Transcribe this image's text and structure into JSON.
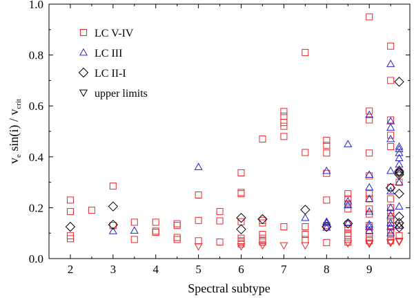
{
  "chart_data": {
    "type": "scatter",
    "title": "",
    "xlabel": "Spectral subtype",
    "ylabel_parts": [
      "v",
      "e",
      " sin(i) / v",
      "crit"
    ],
    "xlim": [
      1.5,
      9.95
    ],
    "ylim": [
      0.0,
      1.0
    ],
    "xticks": [
      2,
      3,
      4,
      5,
      6,
      7,
      8,
      9
    ],
    "yticks": [
      0.0,
      0.2,
      0.4,
      0.6,
      0.8,
      1.0
    ],
    "ytick_labels": [
      "0.0",
      "0.2",
      "0.4",
      "0.6",
      "0.8",
      "1.0"
    ],
    "grid": false,
    "legend_position": "top-left",
    "series": [
      {
        "name": "LC V-IV",
        "marker": "square",
        "color": "#e8262a",
        "points": [
          [
            2.0,
            0.23
          ],
          [
            2.0,
            0.185
          ],
          [
            2.0,
            0.09
          ],
          [
            2.0,
            0.078
          ],
          [
            2.5,
            0.19
          ],
          [
            3.0,
            0.285
          ],
          [
            3.0,
            0.13
          ],
          [
            3.5,
            0.143
          ],
          [
            3.5,
            0.075
          ],
          [
            4.0,
            0.143
          ],
          [
            4.0,
            0.108
          ],
          [
            4.0,
            0.103
          ],
          [
            4.5,
            0.137
          ],
          [
            4.5,
            0.13
          ],
          [
            4.5,
            0.083
          ],
          [
            4.5,
            0.075
          ],
          [
            5.0,
            0.25
          ],
          [
            5.0,
            0.15
          ],
          [
            5.0,
            0.07
          ],
          [
            5.5,
            0.185
          ],
          [
            5.5,
            0.148
          ],
          [
            5.5,
            0.065
          ],
          [
            6.0,
            0.337
          ],
          [
            6.0,
            0.26
          ],
          [
            6.0,
            0.255
          ],
          [
            6.0,
            0.145
          ],
          [
            6.0,
            0.08
          ],
          [
            6.0,
            0.07
          ],
          [
            6.0,
            0.065
          ],
          [
            6.0,
            0.058
          ],
          [
            6.5,
            0.47
          ],
          [
            6.5,
            0.15
          ],
          [
            6.5,
            0.14
          ],
          [
            6.5,
            0.095
          ],
          [
            6.5,
            0.08
          ],
          [
            6.5,
            0.072
          ],
          [
            6.5,
            0.065
          ],
          [
            7.0,
            0.578
          ],
          [
            7.0,
            0.56
          ],
          [
            7.0,
            0.535
          ],
          [
            7.0,
            0.52
          ],
          [
            7.0,
            0.48
          ],
          [
            7.0,
            0.125
          ],
          [
            7.5,
            0.81
          ],
          [
            7.5,
            0.417
          ],
          [
            7.5,
            0.125
          ],
          [
            7.5,
            0.095
          ],
          [
            7.5,
            0.075
          ],
          [
            8.0,
            0.465
          ],
          [
            8.0,
            0.445
          ],
          [
            8.0,
            0.415
          ],
          [
            8.0,
            0.335
          ],
          [
            8.0,
            0.23
          ],
          [
            8.0,
            0.13
          ],
          [
            8.0,
            0.063
          ],
          [
            8.5,
            0.255
          ],
          [
            8.5,
            0.235
          ],
          [
            8.5,
            0.215
          ],
          [
            8.5,
            0.195
          ],
          [
            8.5,
            0.135
          ],
          [
            8.5,
            0.12
          ],
          [
            8.5,
            0.1
          ],
          [
            8.5,
            0.09
          ],
          [
            8.5,
            0.075
          ],
          [
            8.5,
            0.065
          ],
          [
            9.0,
            0.95
          ],
          [
            9.0,
            0.58
          ],
          [
            9.0,
            0.545
          ],
          [
            9.0,
            0.415
          ],
          [
            9.0,
            0.325
          ],
          [
            9.0,
            0.255
          ],
          [
            9.0,
            0.235
          ],
          [
            9.0,
            0.195
          ],
          [
            9.0,
            0.175
          ],
          [
            9.0,
            0.13
          ],
          [
            9.0,
            0.1
          ],
          [
            9.0,
            0.085
          ],
          [
            9.0,
            0.07
          ],
          [
            9.5,
            0.835
          ],
          [
            9.5,
            0.7
          ],
          [
            9.5,
            0.545
          ],
          [
            9.5,
            0.485
          ],
          [
            9.5,
            0.44
          ],
          [
            9.5,
            0.28
          ],
          [
            9.5,
            0.235
          ],
          [
            9.5,
            0.2
          ],
          [
            9.5,
            0.18
          ],
          [
            9.5,
            0.165
          ],
          [
            9.5,
            0.155
          ],
          [
            9.5,
            0.13
          ],
          [
            9.5,
            0.115
          ],
          [
            9.5,
            0.1
          ],
          [
            9.5,
            0.085
          ],
          [
            9.5,
            0.07
          ],
          [
            9.7,
            0.34
          ],
          [
            9.7,
            0.3
          ],
          [
            9.7,
            0.13
          ],
          [
            9.7,
            0.09
          ]
        ]
      },
      {
        "name": "LC III",
        "marker": "triangle-up",
        "color": "#2323c8",
        "points": [
          [
            3.0,
            0.108
          ],
          [
            3.5,
            0.11
          ],
          [
            5.0,
            0.36
          ],
          [
            7.5,
            0.16
          ],
          [
            8.0,
            0.345
          ],
          [
            8.0,
            0.145
          ],
          [
            8.0,
            0.14
          ],
          [
            8.0,
            0.122
          ],
          [
            8.5,
            0.45
          ],
          [
            8.5,
            0.225
          ],
          [
            8.5,
            0.21
          ],
          [
            8.5,
            0.14
          ],
          [
            9.0,
            0.565
          ],
          [
            9.0,
            0.33
          ],
          [
            9.0,
            0.28
          ],
          [
            9.0,
            0.235
          ],
          [
            9.0,
            0.185
          ],
          [
            9.0,
            0.135
          ],
          [
            9.0,
            0.125
          ],
          [
            9.0,
            0.11
          ],
          [
            9.5,
            0.765
          ],
          [
            9.5,
            0.54
          ],
          [
            9.5,
            0.515
          ],
          [
            9.5,
            0.47
          ],
          [
            9.5,
            0.345
          ],
          [
            9.5,
            0.265
          ],
          [
            9.5,
            0.2
          ],
          [
            9.5,
            0.17
          ],
          [
            9.5,
            0.14
          ],
          [
            9.5,
            0.125
          ],
          [
            9.5,
            0.1
          ],
          [
            9.7,
            0.44
          ],
          [
            9.7,
            0.43
          ],
          [
            9.7,
            0.415
          ],
          [
            9.7,
            0.395
          ],
          [
            9.7,
            0.37
          ],
          [
            9.7,
            0.35
          ],
          [
            9.7,
            0.3
          ],
          [
            9.7,
            0.205
          ],
          [
            9.7,
            0.13
          ]
        ]
      },
      {
        "name": "LC II-I",
        "marker": "diamond",
        "color": "#000000",
        "points": [
          [
            2.0,
            0.125
          ],
          [
            3.0,
            0.205
          ],
          [
            3.0,
            0.133
          ],
          [
            6.0,
            0.16
          ],
          [
            6.0,
            0.115
          ],
          [
            6.5,
            0.155
          ],
          [
            7.5,
            0.192
          ],
          [
            8.0,
            0.125
          ],
          [
            8.5,
            0.138
          ],
          [
            9.5,
            0.278
          ],
          [
            9.7,
            0.695
          ],
          [
            9.7,
            0.343
          ],
          [
            9.7,
            0.337
          ],
          [
            9.7,
            0.33
          ],
          [
            9.7,
            0.255
          ],
          [
            9.7,
            0.165
          ],
          [
            9.7,
            0.14
          ],
          [
            9.7,
            0.122
          ]
        ]
      },
      {
        "name": "upper limits",
        "marker": "triangle-down",
        "color": "#e8262a",
        "points": [
          [
            5.0,
            0.048
          ],
          [
            6.0,
            0.048
          ],
          [
            6.5,
            0.052
          ],
          [
            7.0,
            0.052
          ],
          [
            7.5,
            0.052
          ],
          [
            8.5,
            0.06
          ],
          [
            9.0,
            0.062
          ],
          [
            9.0,
            0.058
          ],
          [
            9.5,
            0.065
          ],
          [
            9.5,
            0.062
          ],
          [
            9.7,
            0.07
          ],
          [
            9.7,
            0.066
          ]
        ]
      }
    ]
  }
}
